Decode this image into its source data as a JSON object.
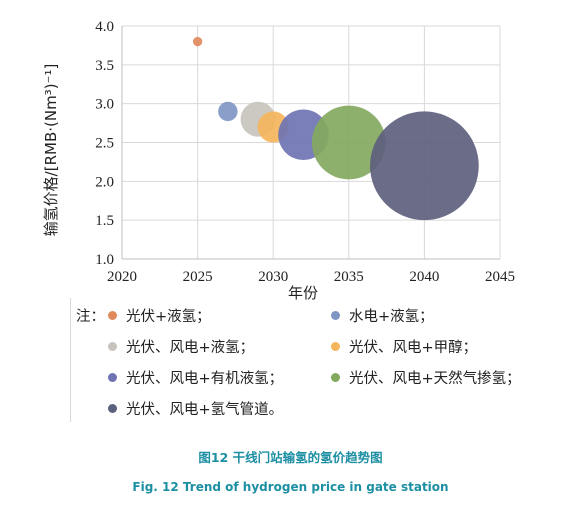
{
  "chart_data": {
    "type": "scatter",
    "xlabel": "年份",
    "ylabel": "输氢价格/[RMB·(Nm³)⁻¹]",
    "xlim": [
      2020,
      2045
    ],
    "ylim": [
      1.0,
      4.0
    ],
    "xticks": [
      "2020",
      "2025",
      "2030",
      "2035",
      "2040",
      "2045"
    ],
    "yticks": [
      "1.0",
      "1.5",
      "2.0",
      "2.5",
      "3.0",
      "3.5",
      "4.0"
    ],
    "grid": true,
    "legend_prefix": "注：",
    "series": [
      {
        "name": "光伏+液氢；",
        "color": "#e08a5c",
        "points": [
          {
            "x": 2025,
            "y": 3.8,
            "size": 0.12
          }
        ]
      },
      {
        "name": "水电+液氢；",
        "color": "#7f96c4",
        "points": [
          {
            "x": 2027,
            "y": 2.9,
            "size": 0.25
          }
        ]
      },
      {
        "name": "光伏、风电+液氢；",
        "color": "#c8c4bd",
        "points": [
          {
            "x": 2029,
            "y": 2.8,
            "size": 0.45
          }
        ]
      },
      {
        "name": "光伏、风电+甲醇；",
        "color": "#f5b55c",
        "points": [
          {
            "x": 2030,
            "y": 2.7,
            "size": 0.4
          }
        ]
      },
      {
        "name": "光伏、风电+有机液氢；",
        "color": "#6f73b3",
        "points": [
          {
            "x": 2032,
            "y": 2.6,
            "size": 0.65
          }
        ]
      },
      {
        "name": "光伏、风电+天然气掺氢；",
        "color": "#83a95f",
        "points": [
          {
            "x": 2035,
            "y": 2.5,
            "size": 0.95
          }
        ]
      },
      {
        "name": "光伏、风电+氢气管道。",
        "color": "#5d5f7e",
        "points": [
          {
            "x": 2040,
            "y": 2.2,
            "size": 1.4
          }
        ]
      }
    ]
  },
  "caption": {
    "cn": "图12 干线门站输氢的氢价趋势图",
    "en": "Fig. 12 Trend of hydrogen price in gate station"
  }
}
